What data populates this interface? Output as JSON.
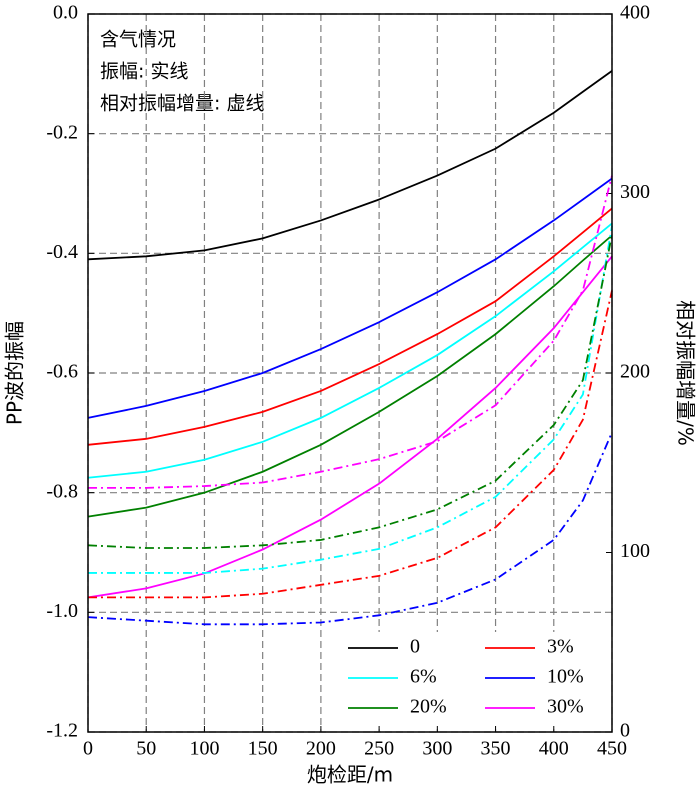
{
  "chart_data": {
    "type": "line",
    "annotations": [
      "含气情况",
      "振幅: 实线",
      "相对振幅增量: 虚线"
    ],
    "xlabel": "炮检距/m",
    "ylabel": "PP波的振幅",
    "y2label": "相对振幅增量/%",
    "x": [
      0,
      50,
      100,
      150,
      200,
      250,
      300,
      350,
      400,
      425,
      450
    ],
    "xlim": [
      0,
      450
    ],
    "xticks": [
      0,
      50,
      100,
      150,
      200,
      250,
      300,
      350,
      400,
      450
    ],
    "ylim": [
      -1.2,
      0
    ],
    "yticks": [
      -1.2,
      {
        "value": -1,
        "label": "-1.0"
      },
      -0.8,
      -0.6,
      -0.4,
      -0.2,
      {
        "value": 0,
        "label": "0.0"
      }
    ],
    "y2lim": [
      0,
      400
    ],
    "y2ticks": [
      0,
      100,
      200,
      300,
      400
    ],
    "grid": true,
    "series": [
      {
        "name": "0",
        "color": "#000000",
        "values": [
          -0.41,
          -0.405,
          -0.395,
          -0.375,
          -0.345,
          -0.31,
          -0.27,
          -0.225,
          -0.165,
          -0.13,
          -0.095
        ]
      },
      {
        "name": "3%",
        "color": "#ff0000",
        "values": [
          -0.72,
          -0.71,
          -0.69,
          -0.665,
          -0.63,
          -0.585,
          -0.535,
          -0.48,
          -0.405,
          -0.365,
          -0.325
        ]
      },
      {
        "name": "6%",
        "color": "#00ffff",
        "values": [
          -0.775,
          -0.765,
          -0.745,
          -0.715,
          -0.675,
          -0.625,
          -0.57,
          -0.505,
          -0.43,
          -0.39,
          -0.35
        ]
      },
      {
        "name": "10%",
        "color": "#0000ff",
        "values": [
          -0.675,
          -0.655,
          -0.63,
          -0.6,
          -0.56,
          -0.515,
          -0.465,
          -0.41,
          -0.345,
          -0.31,
          -0.275
        ]
      },
      {
        "name": "20%",
        "color": "#008000",
        "values": [
          -0.84,
          -0.825,
          -0.8,
          -0.765,
          -0.72,
          -0.665,
          -0.605,
          -0.535,
          -0.455,
          -0.412,
          -0.37
        ]
      },
      {
        "name": "30%",
        "color": "#ff00ff",
        "values": [
          -0.975,
          -0.96,
          -0.935,
          -0.895,
          -0.845,
          -0.785,
          -0.71,
          -0.625,
          -0.525,
          -0.465,
          -0.405
        ]
      },
      {
        "axis": "y2",
        "linestyle": "dashdot",
        "color": "#ff0000",
        "values": [
          75,
          75,
          75,
          77,
          82,
          87,
          97,
          114,
          146,
          174,
          246
        ]
      },
      {
        "axis": "y2",
        "linestyle": "dashdot",
        "color": "#00ffff",
        "values": [
          88.6,
          88.6,
          88.6,
          91,
          96,
          102,
          114,
          131,
          163,
          188,
          282
        ]
      },
      {
        "axis": "y2",
        "linestyle": "dashdot",
        "color": "#0000ff",
        "values": [
          64,
          62,
          60,
          60,
          61,
          65,
          72,
          85,
          107,
          129,
          167
        ]
      },
      {
        "axis": "y2",
        "linestyle": "dashdot",
        "color": "#008000",
        "values": [
          104,
          102.5,
          102.5,
          104,
          107,
          114,
          124,
          140,
          171,
          196,
          277
        ]
      },
      {
        "axis": "y2",
        "linestyle": "dashdot",
        "color": "#ff00ff",
        "values": [
          136,
          136,
          137,
          139,
          145,
          152,
          162,
          182,
          218,
          246,
          310
        ]
      }
    ]
  }
}
